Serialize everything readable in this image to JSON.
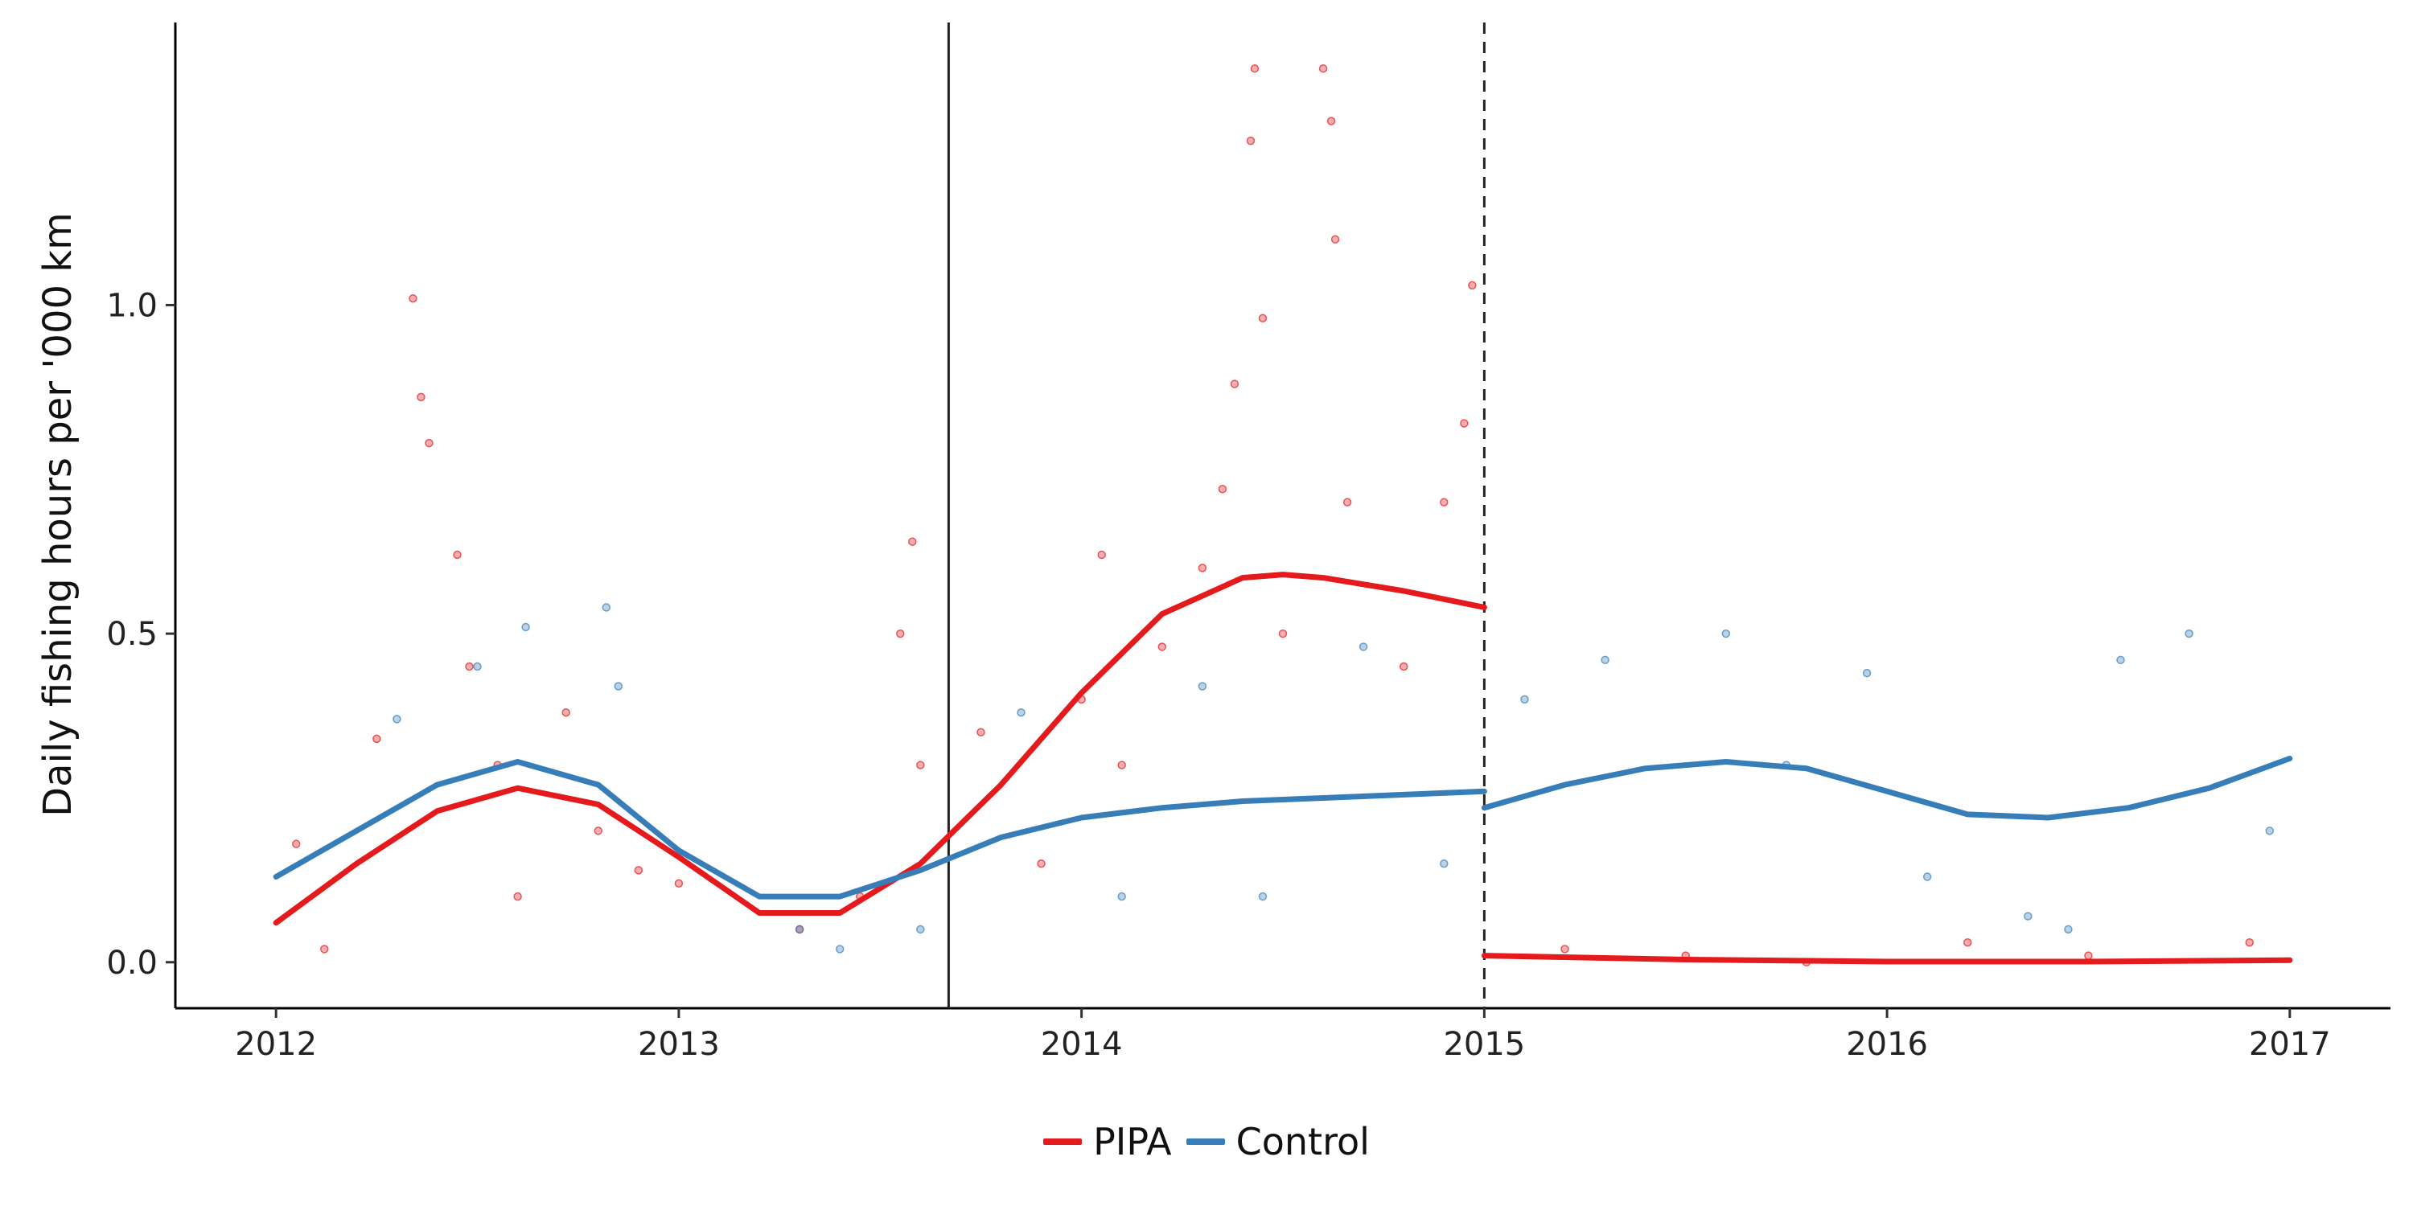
{
  "chart_data": {
    "type": "scatter",
    "xlabel": "",
    "ylabel": "Daily fishing hours per '000 km",
    "xlim": [
      2011.75,
      2017.25
    ],
    "ylim": [
      -0.07,
      1.43
    ],
    "x_ticks": [
      2012,
      2013,
      2014,
      2015,
      2016,
      2017
    ],
    "x_tick_labels": [
      "2012",
      "2013",
      "2014",
      "2015",
      "2016",
      "2017"
    ],
    "y_ticks": [
      0.0,
      0.5,
      1.0
    ],
    "y_tick_labels": [
      "0.0",
      "0.5",
      "1.0"
    ],
    "grid": false,
    "legend_position": "bottom",
    "reference_lines": [
      {
        "x": 2013.67,
        "style": "solid"
      },
      {
        "x": 2015.0,
        "style": "dashed"
      }
    ],
    "series": [
      {
        "name": "PIPA",
        "color": "#E41A1C",
        "smooth": {
          "x": [
            2012.0,
            2012.2,
            2012.4,
            2012.6,
            2012.8,
            2013.0,
            2013.2,
            2013.4,
            2013.6,
            2013.8,
            2014.0,
            2014.2,
            2014.4,
            2014.5,
            2014.6,
            2014.8,
            2015.0
          ],
          "y": [
            0.06,
            0.15,
            0.23,
            0.265,
            0.24,
            0.16,
            0.075,
            0.075,
            0.15,
            0.27,
            0.41,
            0.53,
            0.585,
            0.59,
            0.585,
            0.565,
            0.54
          ]
        },
        "smooth_post": {
          "x": [
            2015.0,
            2015.5,
            2016.0,
            2016.5,
            2017.0
          ],
          "y": [
            0.01,
            0.004,
            0.001,
            0.001,
            0.003
          ]
        },
        "points": {
          "x": [
            2012.05,
            2012.12,
            2012.25,
            2012.34,
            2012.36,
            2012.38,
            2012.45,
            2012.48,
            2012.55,
            2012.6,
            2012.72,
            2012.8,
            2012.9,
            2013.0,
            2013.3,
            2013.45,
            2013.55,
            2013.58,
            2013.6,
            2013.75,
            2013.9,
            2014.0,
            2014.05,
            2014.1,
            2014.2,
            2014.3,
            2014.35,
            2014.38,
            2014.42,
            2014.43,
            2014.45,
            2014.5,
            2014.6,
            2014.62,
            2014.63,
            2014.66,
            2014.8,
            2014.9,
            2014.95,
            2014.97,
            2015.2,
            2015.5,
            2015.8,
            2016.2,
            2016.5,
            2016.9
          ],
          "y": [
            0.18,
            0.02,
            0.34,
            1.01,
            0.86,
            0.79,
            0.62,
            0.45,
            0.3,
            0.1,
            0.38,
            0.2,
            0.14,
            0.12,
            0.05,
            0.1,
            0.5,
            0.64,
            0.3,
            0.35,
            0.15,
            0.4,
            0.62,
            0.3,
            0.48,
            0.6,
            0.72,
            0.88,
            1.25,
            1.36,
            0.98,
            0.5,
            1.36,
            1.28,
            1.1,
            0.7,
            0.45,
            0.7,
            0.82,
            1.03,
            0.02,
            0.01,
            0.0,
            0.03,
            0.01,
            0.03
          ]
        }
      },
      {
        "name": "Control",
        "color": "#377EB8",
        "smooth": {
          "x": [
            2012.0,
            2012.2,
            2012.4,
            2012.6,
            2012.8,
            2013.0,
            2013.2,
            2013.4,
            2013.6,
            2013.8,
            2014.0,
            2014.2,
            2014.4,
            2014.6,
            2014.8,
            2015.0
          ],
          "y": [
            0.13,
            0.2,
            0.27,
            0.305,
            0.27,
            0.17,
            0.1,
            0.1,
            0.14,
            0.19,
            0.22,
            0.235,
            0.245,
            0.25,
            0.255,
            0.26
          ]
        },
        "smooth_post": {
          "x": [
            2015.0,
            2015.2,
            2015.4,
            2015.6,
            2015.8,
            2016.0,
            2016.2,
            2016.4,
            2016.6,
            2016.8,
            2017.0
          ],
          "y": [
            0.235,
            0.27,
            0.295,
            0.305,
            0.295,
            0.26,
            0.225,
            0.22,
            0.235,
            0.265,
            0.31
          ]
        },
        "points": {
          "x": [
            2012.3,
            2012.5,
            2012.62,
            2012.82,
            2012.85,
            2013.3,
            2013.4,
            2013.6,
            2013.85,
            2014.1,
            2014.3,
            2014.45,
            2014.7,
            2014.9,
            2015.1,
            2015.3,
            2015.6,
            2015.75,
            2015.95,
            2016.1,
            2016.35,
            2016.45,
            2016.58,
            2016.75,
            2016.95
          ],
          "y": [
            0.37,
            0.45,
            0.51,
            0.54,
            0.42,
            0.05,
            0.02,
            0.05,
            0.38,
            0.1,
            0.42,
            0.1,
            0.48,
            0.15,
            0.4,
            0.46,
            0.5,
            0.3,
            0.44,
            0.13,
            0.07,
            0.05,
            0.46,
            0.5,
            0.2
          ]
        }
      }
    ]
  }
}
